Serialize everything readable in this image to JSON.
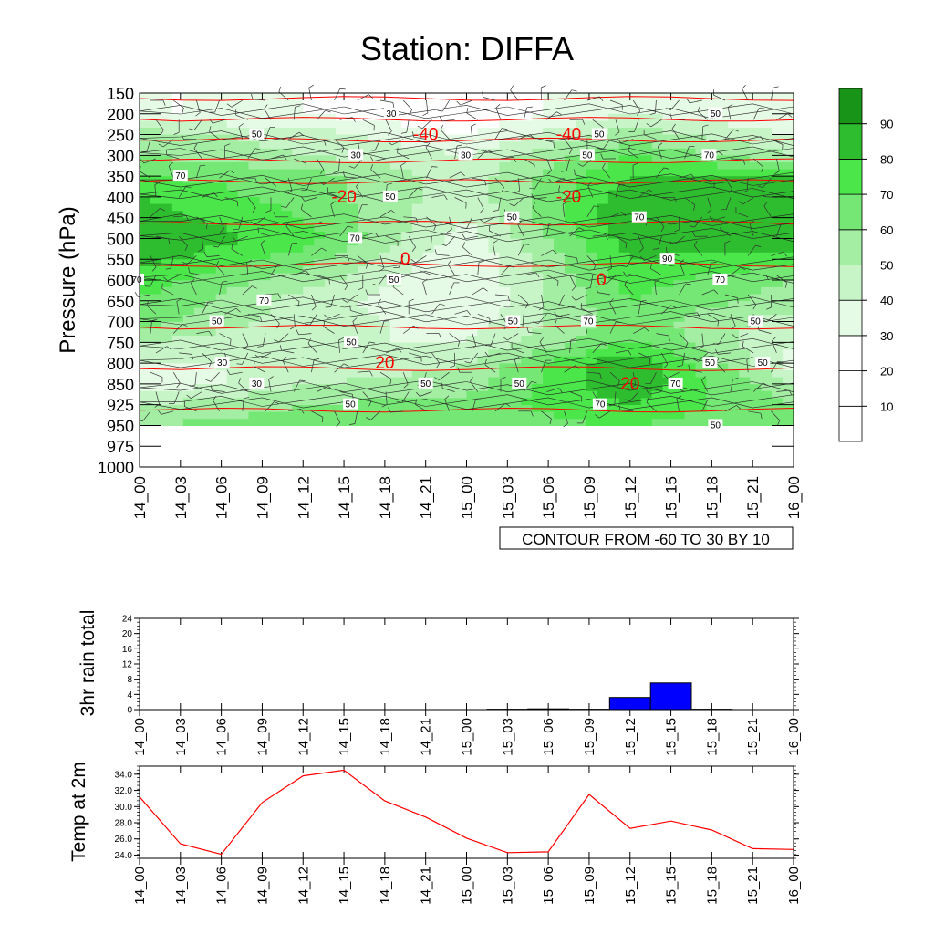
{
  "title": "Station: DIFFA",
  "colors": {
    "rh_levels": [
      "#ffffff",
      "#ffffff",
      "#ffffff",
      "#e6fbe6",
      "#c8f5c8",
      "#a4eea4",
      "#74e774",
      "#4ae64a",
      "#2ebd2e",
      "#189418"
    ],
    "isotherm": "#ff0000",
    "rain_bar": "#0000ff",
    "temp_line": "#ff0000"
  },
  "chart_data": [
    {
      "type": "heatmap",
      "name": "time-pressure section",
      "ylabel": "Pressure (hPa)",
      "xlabel": "",
      "x_ticks": [
        "14_00",
        "14_03",
        "14_06",
        "14_09",
        "14_12",
        "14_15",
        "14_18",
        "14_21",
        "15_00",
        "15_03",
        "15_06",
        "15_09",
        "15_12",
        "15_15",
        "15_18",
        "15_21",
        "16_00"
      ],
      "y_ticks": [
        "150",
        "200",
        "250",
        "300",
        "350",
        "400",
        "450",
        "500",
        "550",
        "600",
        "650",
        "700",
        "750",
        "800",
        "850",
        "925",
        "950",
        "975",
        "1000"
      ],
      "colorbar": {
        "labels": [
          "10",
          "20",
          "30",
          "40",
          "50",
          "60",
          "70",
          "80",
          "90"
        ],
        "levels": [
          10,
          20,
          30,
          40,
          50,
          60,
          70,
          80,
          90
        ]
      },
      "relative_humidity": {
        "x_index": [
          0,
          4,
          8,
          12,
          16
        ],
        "pressure_rows": [
          "200",
          "250",
          "300",
          "350",
          "400",
          "450",
          "500",
          "550",
          "600",
          "650",
          "700",
          "750",
          "800",
          "850",
          "925",
          "950"
        ],
        "values": [
          [
            30,
            30,
            20,
            40,
            30
          ],
          [
            55,
            45,
            30,
            55,
            40
          ],
          [
            60,
            50,
            40,
            70,
            50
          ],
          [
            70,
            65,
            45,
            80,
            80
          ],
          [
            80,
            65,
            45,
            85,
            85
          ],
          [
            85,
            70,
            40,
            90,
            90
          ],
          [
            90,
            75,
            35,
            85,
            85
          ],
          [
            85,
            65,
            30,
            80,
            75
          ],
          [
            75,
            55,
            30,
            75,
            60
          ],
          [
            70,
            45,
            30,
            70,
            55
          ],
          [
            65,
            45,
            35,
            65,
            45
          ],
          [
            50,
            40,
            40,
            70,
            40
          ],
          [
            40,
            40,
            50,
            90,
            35
          ],
          [
            30,
            50,
            55,
            90,
            50
          ],
          [
            50,
            60,
            65,
            80,
            60
          ],
          [
            60,
            65,
            65,
            70,
            60
          ]
        ]
      },
      "contour_labels_black": [
        "30",
        "50",
        "70",
        "90"
      ],
      "isotherms": {
        "note": "CONTOUR FROM -60 TO 30 BY 10",
        "labels": [
          "-40",
          "-40",
          "-20",
          "-20",
          "0",
          "0",
          "20",
          "20"
        ]
      }
    },
    {
      "type": "bar",
      "name": "3hr rain",
      "ylabel": "3hr rain total",
      "categories": [
        "14_00",
        "14_03",
        "14_06",
        "14_09",
        "14_12",
        "14_15",
        "14_18",
        "14_21",
        "15_00",
        "15_03",
        "15_06",
        "15_09",
        "15_12",
        "15_15",
        "15_18",
        "15_21",
        "16_00"
      ],
      "values": [
        0,
        0,
        0,
        0,
        0,
        0,
        0,
        0,
        0,
        0.1,
        0.2,
        0.1,
        3.2,
        7.0,
        0.1,
        0,
        0
      ],
      "ylim": [
        0,
        24
      ],
      "y_ticks": [
        "0",
        "4",
        "8",
        "12",
        "16",
        "20",
        "24"
      ]
    },
    {
      "type": "line",
      "name": "2m temperature",
      "ylabel": "Temp at 2m",
      "x": [
        "14_00",
        "14_03",
        "14_06",
        "14_09",
        "14_12",
        "14_15",
        "14_18",
        "14_21",
        "15_00",
        "15_03",
        "15_06",
        "15_09",
        "15_12",
        "15_15",
        "15_18",
        "15_21",
        "16_00"
      ],
      "values": [
        31.2,
        25.4,
        24.1,
        30.5,
        33.8,
        34.5,
        30.7,
        28.7,
        26.1,
        24.3,
        24.4,
        31.5,
        27.3,
        28.2,
        27.1,
        24.8,
        24.7
      ],
      "ylim": [
        23.6,
        35.0
      ],
      "y_ticks": [
        "24.0",
        "26.0",
        "28.0",
        "30.0",
        "32.0",
        "34.0"
      ]
    }
  ]
}
